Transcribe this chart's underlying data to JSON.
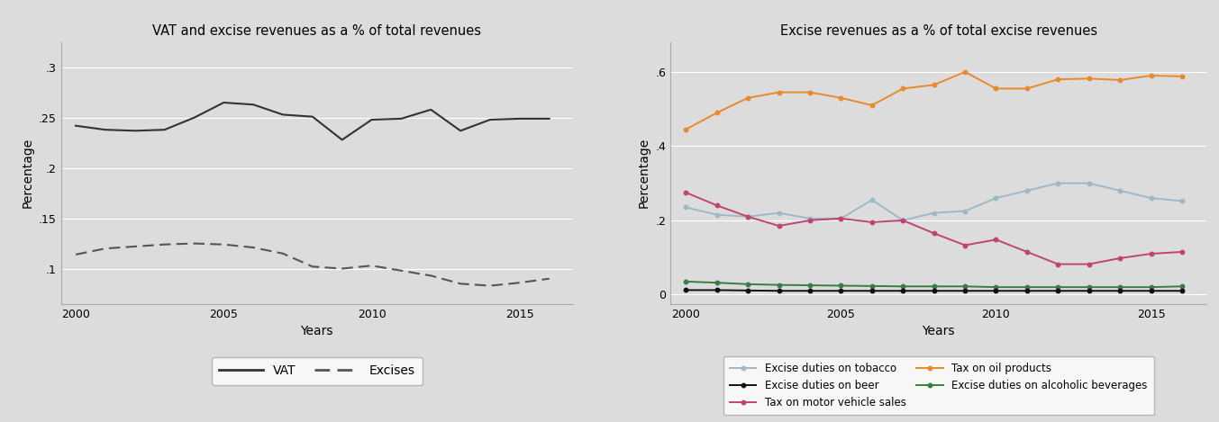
{
  "years": [
    2000,
    2001,
    2002,
    2003,
    2004,
    2005,
    2006,
    2007,
    2008,
    2009,
    2010,
    2011,
    2012,
    2013,
    2014,
    2015,
    2016
  ],
  "vat": [
    0.242,
    0.238,
    0.237,
    0.238,
    0.25,
    0.265,
    0.263,
    0.253,
    0.251,
    0.228,
    0.248,
    0.249,
    0.258,
    0.237,
    0.248,
    0.249,
    0.249
  ],
  "excises": [
    0.114,
    0.12,
    0.122,
    0.124,
    0.125,
    0.124,
    0.121,
    0.115,
    0.102,
    0.1,
    0.103,
    0.098,
    0.093,
    0.085,
    0.083,
    0.086,
    0.09
  ],
  "tobacco": [
    0.235,
    0.215,
    0.21,
    0.22,
    0.205,
    0.205,
    0.255,
    0.2,
    0.22,
    0.225,
    0.26,
    0.28,
    0.3,
    0.3,
    0.28,
    0.26,
    0.252
  ],
  "motor_vehicle": [
    0.275,
    0.24,
    0.21,
    0.185,
    0.2,
    0.205,
    0.195,
    0.2,
    0.165,
    0.133,
    0.148,
    0.115,
    0.082,
    0.082,
    0.098,
    0.11,
    0.115
  ],
  "alcoholic": [
    0.035,
    0.032,
    0.028,
    0.026,
    0.025,
    0.024,
    0.023,
    0.022,
    0.022,
    0.022,
    0.02,
    0.02,
    0.02,
    0.02,
    0.02,
    0.02,
    0.022
  ],
  "beer": [
    0.012,
    0.012,
    0.011,
    0.01,
    0.01,
    0.01,
    0.01,
    0.01,
    0.01,
    0.01,
    0.01,
    0.01,
    0.01,
    0.01,
    0.01,
    0.01,
    0.01
  ],
  "oil": [
    0.445,
    0.49,
    0.53,
    0.545,
    0.545,
    0.53,
    0.51,
    0.555,
    0.565,
    0.6,
    0.555,
    0.555,
    0.58,
    0.582,
    0.578,
    0.59,
    0.588
  ],
  "left_title": "VAT and excise revenues as a % of total revenues",
  "right_title": "Excise revenues as a % of total excise revenues",
  "xlabel": "Years",
  "ylabel": "Percentage",
  "left_yticks": [
    0.1,
    0.15,
    0.2,
    0.25,
    0.3
  ],
  "left_ytick_labels": [
    ".1",
    ".15",
    ".2",
    ".25",
    ".3"
  ],
  "left_ylim": [
    0.065,
    0.325
  ],
  "right_yticks": [
    0.0,
    0.2,
    0.4,
    0.6
  ],
  "right_ytick_labels": [
    "0",
    ".2",
    ".4",
    ".6"
  ],
  "right_ylim": [
    -0.025,
    0.68
  ],
  "vat_color": "#333333",
  "excises_color": "#555555",
  "tobacco_color": "#9db8c8",
  "motor_vehicle_color": "#c0456e",
  "alcoholic_color": "#3a7d44",
  "beer_color": "#111111",
  "oil_color": "#e88a2e",
  "bg_color": "#dcdcdc",
  "grid_color": "#ffffff",
  "panel_bg": "#dcdcdc"
}
